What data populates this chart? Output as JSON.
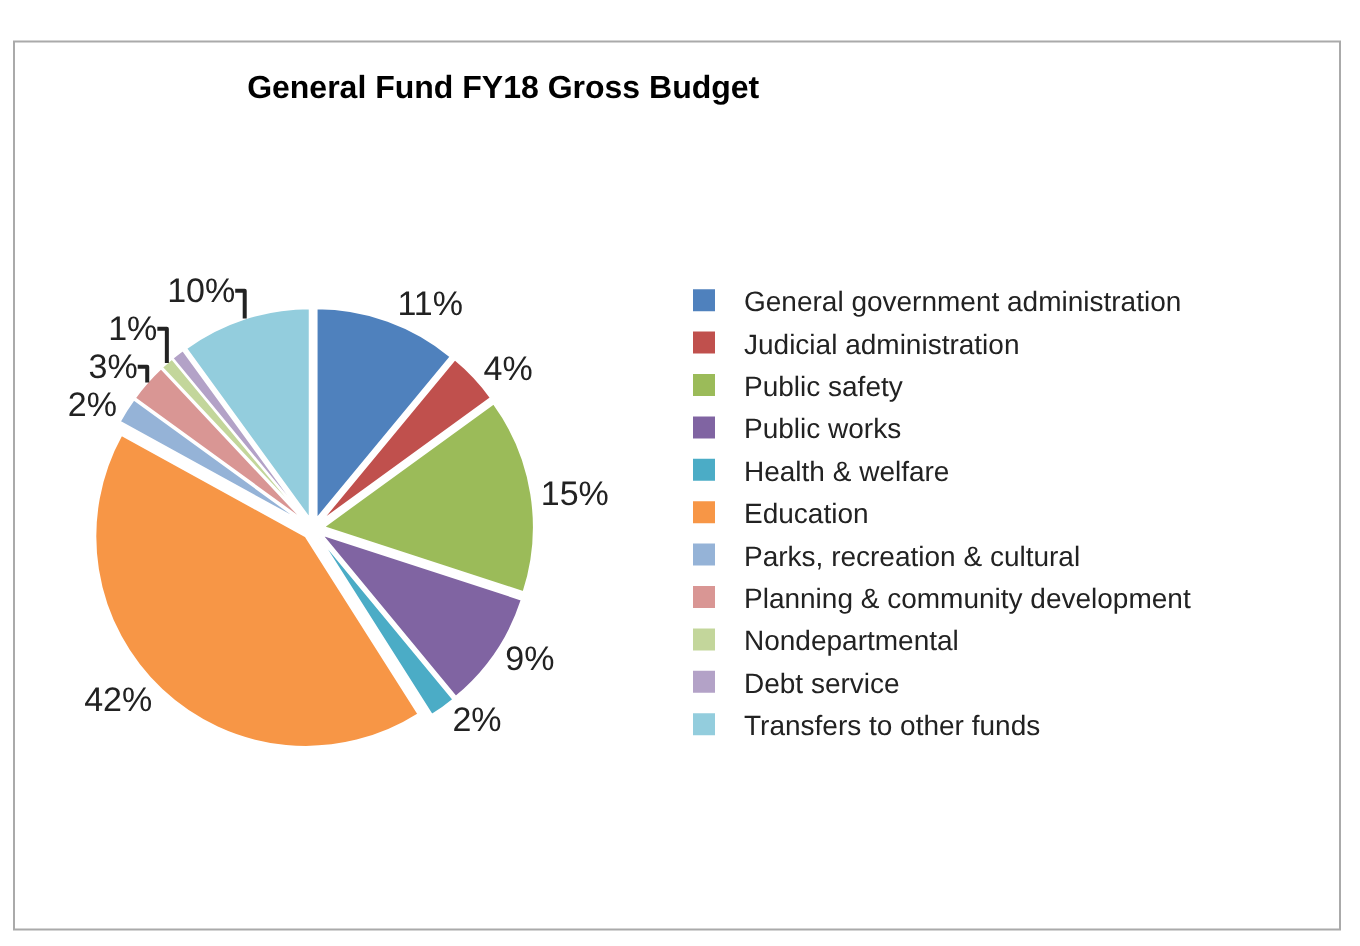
{
  "chart_data": {
    "type": "pie",
    "title": "General Fund FY18 Gross Budget",
    "categories": [
      "General government administration",
      "Judicial administration",
      "Public safety",
      "Public works",
      "Health & welfare",
      "Education",
      "Parks, recreation & cultural",
      "Planning & community development",
      "Nondepartmental",
      "Debt service",
      "Transfers to other funds"
    ],
    "values": [
      11,
      4,
      15,
      9,
      2,
      42,
      2,
      3,
      1,
      1,
      10
    ],
    "value_labels": [
      "11%",
      "4%",
      "15%",
      "9%",
      "2%",
      "42%",
      "2%",
      "3%",
      "1%",
      null,
      "10%"
    ],
    "colors": [
      "#4f81bd",
      "#c0504d",
      "#9bbb59",
      "#8064a2",
      "#4bacc6",
      "#f79646",
      "#95b3d7",
      "#d99694",
      "#c3d69b",
      "#b3a2c7",
      "#93cddd"
    ],
    "legend": "right"
  }
}
